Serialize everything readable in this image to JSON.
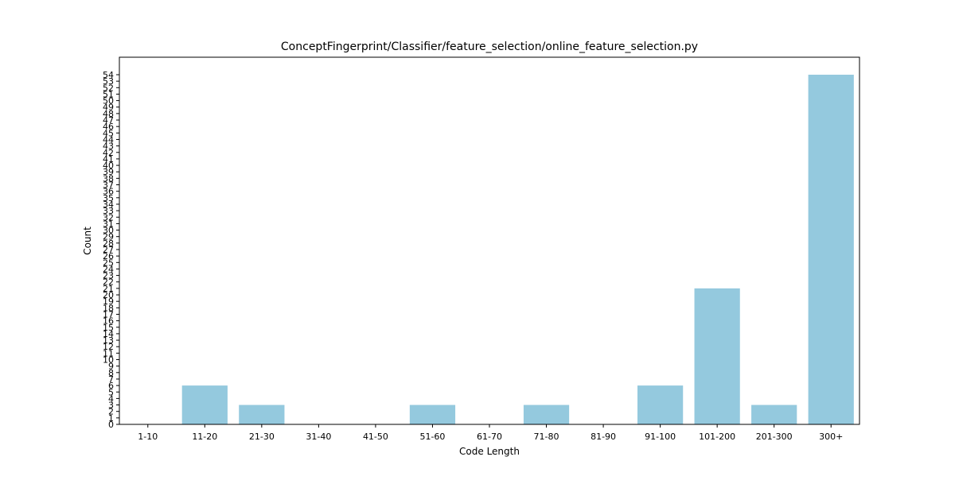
{
  "chart_data": {
    "type": "bar",
    "title": "ConceptFingerprint/Classifier/feature_selection/online_feature_selection.py",
    "xlabel": "Code Length",
    "ylabel": "Count",
    "categories": [
      "1-10",
      "11-20",
      "21-30",
      "31-40",
      "41-50",
      "51-60",
      "61-70",
      "71-80",
      "81-90",
      "91-100",
      "101-200",
      "201-300",
      "300+"
    ],
    "values": [
      0,
      6,
      3,
      0,
      0,
      3,
      0,
      3,
      0,
      6,
      21,
      3,
      54
    ],
    "ylim": [
      0,
      56.7
    ],
    "yticks": [
      0,
      1,
      2,
      3,
      4,
      5,
      6,
      7,
      8,
      9,
      10,
      11,
      12,
      13,
      14,
      15,
      16,
      17,
      18,
      19,
      20,
      21,
      22,
      23,
      24,
      25,
      26,
      27,
      28,
      29,
      30,
      31,
      32,
      33,
      34,
      35,
      36,
      37,
      38,
      39,
      40,
      41,
      42,
      43,
      44,
      45,
      46,
      47,
      48,
      49,
      50,
      51,
      52,
      53,
      54
    ],
    "bar_color": "#94c9de",
    "grid": false,
    "legend": "none"
  }
}
